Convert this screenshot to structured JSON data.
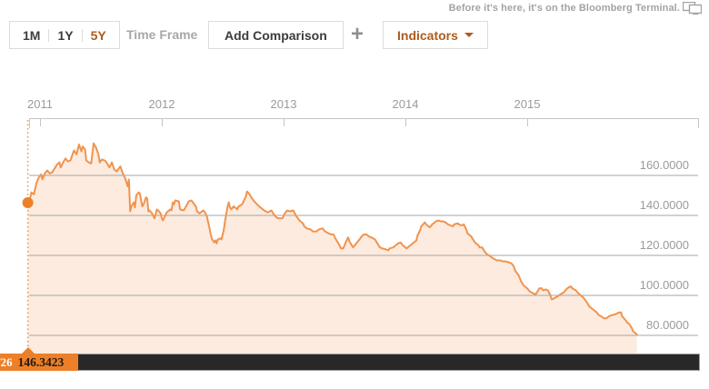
{
  "brand": {
    "tagline": "Before it's here, it's on the Bloomberg Terminal.",
    "terminal_icon": "dual-monitor-icon"
  },
  "toolbar": {
    "timeframes": [
      {
        "label": "1M",
        "selected": false
      },
      {
        "label": "1Y",
        "selected": false
      },
      {
        "label": "5Y",
        "selected": true
      }
    ],
    "timeframe_caption": "Time Frame",
    "add_comparison_label": "Add Comparison",
    "plus_icon": "+",
    "indicators_label": "Indicators"
  },
  "tooltip": {
    "date": "/26",
    "value": "146.3423"
  },
  "colors": {
    "accent_orange": "#b05a1b",
    "line_orange": "#f0944f",
    "fill_peach": "#fcebde",
    "marker_orange": "#ed7f28",
    "grid_gray": "#a5a5a5",
    "axis_gray": "#c6c6c6",
    "label_gray": "#9b9b9b",
    "bar_black": "#282828"
  },
  "chart_data": {
    "type": "area",
    "title": "",
    "xlabel": "",
    "ylabel": "",
    "x_tick_labels": [
      "2011",
      "2012",
      "2013",
      "2014",
      "2015"
    ],
    "x_tick_years": [
      2011,
      2012,
      2013,
      2014,
      2015
    ],
    "y_tick_labels": [
      "160.0000",
      "140.0000",
      "120.0000",
      "100.0000",
      "80.0000"
    ],
    "y_tick_values": [
      160,
      140,
      120,
      100,
      80
    ],
    "ylim": [
      80,
      160
    ],
    "xlim": [
      2010.9,
      2015.9
    ],
    "grid": true,
    "legend": "none",
    "start_marker": {
      "x": 2010.9,
      "y": 146.3423
    },
    "points": [
      [
        2010.9,
        146.34
      ],
      [
        2010.92,
        149
      ],
      [
        2010.93,
        151.5
      ],
      [
        2010.95,
        150.5
      ],
      [
        2010.97,
        156
      ],
      [
        2010.99,
        159
      ],
      [
        2011.01,
        160.5
      ],
      [
        2011.02,
        158
      ],
      [
        2011.04,
        161
      ],
      [
        2011.06,
        162.5
      ],
      [
        2011.08,
        161
      ],
      [
        2011.1,
        161.5
      ],
      [
        2011.12,
        163.5
      ],
      [
        2011.14,
        165.5
      ],
      [
        2011.16,
        166.5
      ],
      [
        2011.17,
        164
      ],
      [
        2011.19,
        166.5
      ],
      [
        2011.21,
        168.5
      ],
      [
        2011.23,
        167
      ],
      [
        2011.25,
        167.5
      ],
      [
        2011.27,
        171
      ],
      [
        2011.28,
        172.5
      ],
      [
        2011.3,
        170.5
      ],
      [
        2011.32,
        175.5
      ],
      [
        2011.34,
        172
      ],
      [
        2011.35,
        174.5
      ],
      [
        2011.37,
        173
      ],
      [
        2011.38,
        167.5
      ],
      [
        2011.4,
        166.5
      ],
      [
        2011.42,
        166
      ],
      [
        2011.44,
        176
      ],
      [
        2011.46,
        174
      ],
      [
        2011.48,
        170.5
      ],
      [
        2011.49,
        166.5
      ],
      [
        2011.51,
        168
      ],
      [
        2011.53,
        167.5
      ],
      [
        2011.54,
        167
      ],
      [
        2011.57,
        164
      ],
      [
        2011.59,
        166.5
      ],
      [
        2011.61,
        163
      ],
      [
        2011.63,
        162
      ],
      [
        2011.66,
        164.5
      ],
      [
        2011.68,
        161
      ],
      [
        2011.7,
        158.5
      ],
      [
        2011.72,
        154.5
      ],
      [
        2011.73,
        158
      ],
      [
        2011.74,
        142
      ],
      [
        2011.75,
        144.5
      ],
      [
        2011.77,
        146.5
      ],
      [
        2011.78,
        144
      ],
      [
        2011.79,
        150
      ],
      [
        2011.81,
        151.5
      ],
      [
        2011.82,
        151
      ],
      [
        2011.83,
        147.5
      ],
      [
        2011.84,
        144.5
      ],
      [
        2011.85,
        145.5
      ],
      [
        2011.87,
        149
      ],
      [
        2011.88,
        148.5
      ],
      [
        2011.89,
        142
      ],
      [
        2011.9,
        142.5
      ],
      [
        2011.92,
        141
      ],
      [
        2011.94,
        138.5
      ],
      [
        2011.96,
        143
      ],
      [
        2011.97,
        142.5
      ],
      [
        2011.99,
        141
      ],
      [
        2012.0,
        138.5
      ],
      [
        2012.01,
        137.5
      ],
      [
        2012.04,
        141.5
      ],
      [
        2012.07,
        143
      ],
      [
        2012.08,
        142.5
      ],
      [
        2012.09,
        146.5
      ],
      [
        2012.1,
        145.5
      ],
      [
        2012.11,
        147.5
      ],
      [
        2012.14,
        147
      ],
      [
        2012.15,
        143
      ],
      [
        2012.18,
        142.5
      ],
      [
        2012.19,
        143.5
      ],
      [
        2012.22,
        147
      ],
      [
        2012.24,
        147.5
      ],
      [
        2012.25,
        147
      ],
      [
        2012.28,
        144.5
      ],
      [
        2012.29,
        142
      ],
      [
        2012.31,
        141
      ],
      [
        2012.34,
        142.5
      ],
      [
        2012.35,
        142
      ],
      [
        2012.37,
        139.5
      ],
      [
        2012.39,
        134
      ],
      [
        2012.4,
        131
      ],
      [
        2012.41,
        128.5
      ],
      [
        2012.43,
        126.5
      ],
      [
        2012.44,
        127.5
      ],
      [
        2012.45,
        126
      ],
      [
        2012.46,
        128
      ],
      [
        2012.48,
        128.5
      ],
      [
        2012.49,
        128
      ],
      [
        2012.5,
        130.5
      ],
      [
        2012.51,
        133
      ],
      [
        2012.52,
        137.5
      ],
      [
        2012.54,
        144.5
      ],
      [
        2012.55,
        146.5
      ],
      [
        2012.56,
        144
      ],
      [
        2012.57,
        143
      ],
      [
        2012.59,
        144.5
      ],
      [
        2012.6,
        144
      ],
      [
        2012.62,
        143
      ],
      [
        2012.63,
        144.5
      ],
      [
        2012.66,
        145.5
      ],
      [
        2012.69,
        149.5
      ],
      [
        2012.7,
        152
      ],
      [
        2012.72,
        150.5
      ],
      [
        2012.74,
        148.5
      ],
      [
        2012.76,
        147
      ],
      [
        2012.79,
        145
      ],
      [
        2012.82,
        143.5
      ],
      [
        2012.84,
        142.5
      ],
      [
        2012.87,
        141.5
      ],
      [
        2012.9,
        142.5
      ],
      [
        2012.92,
        140.5
      ],
      [
        2012.94,
        139
      ],
      [
        2012.96,
        138.5
      ],
      [
        2012.99,
        138.5
      ],
      [
        2013.01,
        141
      ],
      [
        2013.03,
        142.5
      ],
      [
        2013.05,
        142
      ],
      [
        2013.08,
        142.5
      ],
      [
        2013.1,
        140
      ],
      [
        2013.13,
        137.5
      ],
      [
        2013.16,
        136
      ],
      [
        2013.17,
        134.5
      ],
      [
        2013.19,
        133.5
      ],
      [
        2013.22,
        133
      ],
      [
        2013.24,
        132
      ],
      [
        2013.27,
        132
      ],
      [
        2013.29,
        133
      ],
      [
        2013.32,
        133.5
      ],
      [
        2013.34,
        132
      ],
      [
        2013.37,
        131
      ],
      [
        2013.39,
        130.5
      ],
      [
        2013.41,
        130.5
      ],
      [
        2013.43,
        128
      ],
      [
        2013.46,
        125
      ],
      [
        2013.47,
        123.5
      ],
      [
        2013.49,
        123.5
      ],
      [
        2013.51,
        126.5
      ],
      [
        2013.53,
        129
      ],
      [
        2013.54,
        127
      ],
      [
        2013.57,
        124
      ],
      [
        2013.59,
        125.5
      ],
      [
        2013.61,
        127
      ],
      [
        2013.63,
        128.5
      ],
      [
        2013.64,
        129.5
      ],
      [
        2013.66,
        130.5
      ],
      [
        2013.68,
        130.5
      ],
      [
        2013.7,
        129.5
      ],
      [
        2013.72,
        129
      ],
      [
        2013.75,
        128
      ],
      [
        2013.77,
        126
      ],
      [
        2013.79,
        124
      ],
      [
        2013.81,
        123.5
      ],
      [
        2013.84,
        123
      ],
      [
        2013.86,
        122.5
      ],
      [
        2013.87,
        123.5
      ],
      [
        2013.9,
        124
      ],
      [
        2013.92,
        125
      ],
      [
        2013.94,
        126
      ],
      [
        2013.96,
        126.5
      ],
      [
        2013.98,
        125
      ],
      [
        2014.0,
        124
      ],
      [
        2014.01,
        123.5
      ],
      [
        2014.03,
        124.5
      ],
      [
        2014.05,
        125.5
      ],
      [
        2014.07,
        126.5
      ],
      [
        2014.09,
        127.5
      ],
      [
        2014.1,
        130
      ],
      [
        2014.12,
        132.5
      ],
      [
        2014.13,
        134.5
      ],
      [
        2014.16,
        136.5
      ],
      [
        2014.17,
        135.5
      ],
      [
        2014.19,
        134.5
      ],
      [
        2014.2,
        134
      ],
      [
        2014.22,
        135.5
      ],
      [
        2014.24,
        136.5
      ],
      [
        2014.25,
        137
      ],
      [
        2014.27,
        137.5
      ],
      [
        2014.29,
        137
      ],
      [
        2014.31,
        137
      ],
      [
        2014.33,
        136.5
      ],
      [
        2014.35,
        135.5
      ],
      [
        2014.37,
        135
      ],
      [
        2014.39,
        134.5
      ],
      [
        2014.4,
        135.5
      ],
      [
        2014.43,
        136
      ],
      [
        2014.44,
        135.5
      ],
      [
        2014.46,
        135
      ],
      [
        2014.48,
        135.5
      ],
      [
        2014.5,
        133
      ],
      [
        2014.51,
        131
      ],
      [
        2014.54,
        129.5
      ],
      [
        2014.55,
        128.5
      ],
      [
        2014.57,
        126.5
      ],
      [
        2014.6,
        125
      ],
      [
        2014.61,
        124
      ],
      [
        2014.63,
        124
      ],
      [
        2014.65,
        122
      ],
      [
        2014.67,
        120.5
      ],
      [
        2014.7,
        119.5
      ],
      [
        2014.72,
        118.5
      ],
      [
        2014.75,
        117.5
      ],
      [
        2014.78,
        117.5
      ],
      [
        2014.8,
        117
      ],
      [
        2014.82,
        117
      ],
      [
        2014.85,
        116.5
      ],
      [
        2014.87,
        116
      ],
      [
        2014.89,
        114.5
      ],
      [
        2014.9,
        112.5
      ],
      [
        2014.93,
        110
      ],
      [
        2014.95,
        107
      ],
      [
        2014.97,
        105
      ],
      [
        2015.0,
        103.5
      ],
      [
        2015.02,
        102
      ],
      [
        2015.05,
        101
      ],
      [
        2015.07,
        100.5
      ],
      [
        2015.1,
        103.5
      ],
      [
        2015.12,
        103.5
      ],
      [
        2015.13,
        102.5
      ],
      [
        2015.15,
        103
      ],
      [
        2015.17,
        102.5
      ],
      [
        2015.19,
        100
      ],
      [
        2015.2,
        98
      ],
      [
        2015.22,
        98.5
      ],
      [
        2015.25,
        99.5
      ],
      [
        2015.27,
        100.5
      ],
      [
        2015.3,
        101.5
      ],
      [
        2015.32,
        103
      ],
      [
        2015.34,
        104
      ],
      [
        2015.36,
        104.5
      ],
      [
        2015.37,
        103.5
      ],
      [
        2015.4,
        102.5
      ],
      [
        2015.42,
        101
      ],
      [
        2015.44,
        100
      ],
      [
        2015.46,
        99
      ],
      [
        2015.49,
        96.5
      ],
      [
        2015.51,
        94.5
      ],
      [
        2015.53,
        93.5
      ],
      [
        2015.54,
        93
      ],
      [
        2015.57,
        91.5
      ],
      [
        2015.59,
        90
      ],
      [
        2015.61,
        89.5
      ],
      [
        2015.63,
        88.5
      ],
      [
        2015.65,
        88.5
      ],
      [
        2015.67,
        89.5
      ],
      [
        2015.69,
        90
      ],
      [
        2015.72,
        90.5
      ],
      [
        2015.74,
        91
      ],
      [
        2015.75,
        91.5
      ],
      [
        2015.77,
        91.5
      ],
      [
        2015.78,
        89.5
      ],
      [
        2015.81,
        87.5
      ],
      [
        2015.82,
        86.5
      ],
      [
        2015.84,
        85.5
      ],
      [
        2015.86,
        83.5
      ],
      [
        2015.87,
        82
      ],
      [
        2015.89,
        81
      ],
      [
        2015.9,
        80.5
      ]
    ]
  }
}
